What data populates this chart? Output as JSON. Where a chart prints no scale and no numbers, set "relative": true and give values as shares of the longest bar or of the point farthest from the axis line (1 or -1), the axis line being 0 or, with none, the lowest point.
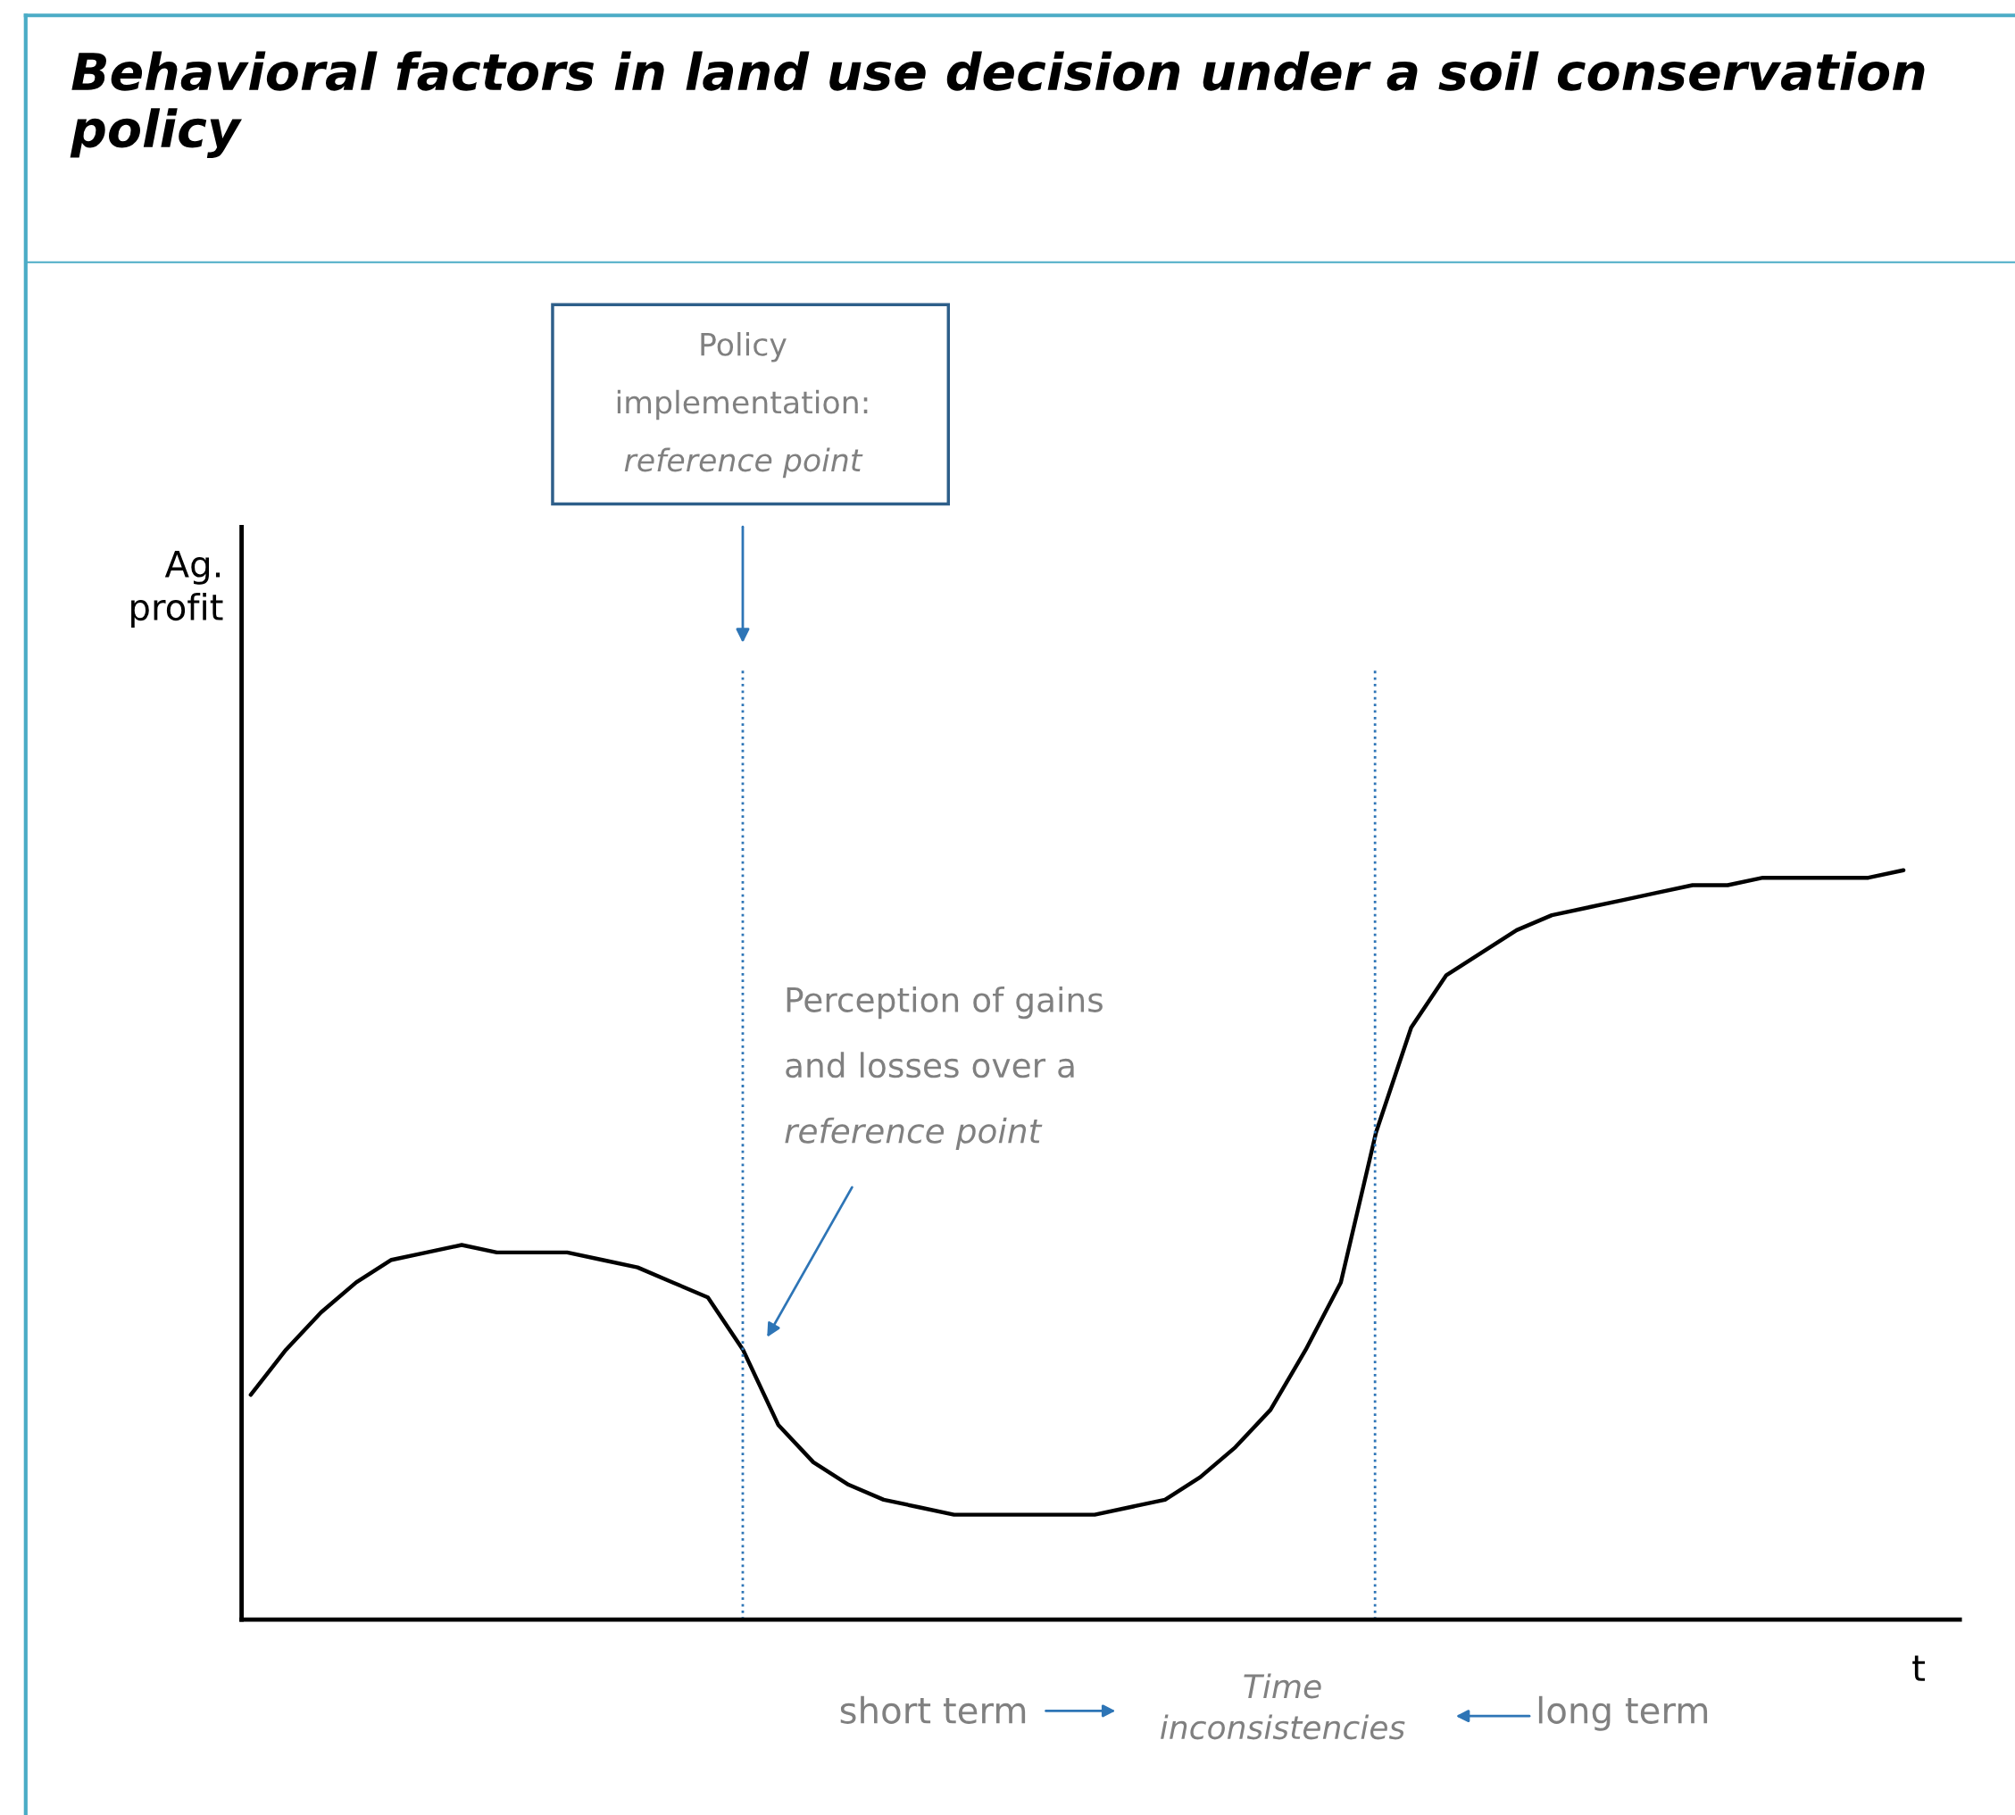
{
  "chart_data": {
    "type": "line",
    "relative": true,
    "title": "Behavioral factors in land use decision under a soil conservation policy",
    "xlabel": "t",
    "categories": [
      null,
      null,
      null,
      null,
      null,
      null,
      null,
      null,
      null,
      null,
      null,
      null,
      null,
      null,
      null,
      null,
      null,
      null,
      null,
      null,
      null,
      null,
      null,
      null,
      null,
      null,
      null,
      null,
      null,
      null,
      null,
      null,
      null,
      null,
      null,
      null,
      null,
      null,
      null,
      null,
      null,
      null,
      null,
      null,
      null,
      null,
      null,
      null
    ],
    "series": [
      {
        "color": "#000000",
        "values": [
          0.3,
          0.36,
          0.41,
          0.45,
          0.48,
          0.49,
          0.5,
          0.49,
          0.49,
          0.49,
          0.48,
          0.47,
          0.45,
          0.43,
          0.36,
          0.26,
          0.21,
          0.18,
          0.16,
          0.15,
          0.14,
          0.14,
          0.14,
          0.14,
          0.14,
          0.15,
          0.16,
          0.19,
          0.23,
          0.28,
          0.36,
          0.45,
          0.65,
          0.79,
          0.86,
          0.89,
          0.92,
          0.94,
          0.95,
          0.96,
          0.97,
          0.98,
          0.98,
          0.99,
          0.99,
          0.99,
          0.99,
          1
        ]
      }
    ],
    "annotations": [
      "Policy\nimplementation:\nreference point",
      "Perception of gains\nand losses over a\nreference point",
      "short term",
      "Time\ninconsistencies",
      "long term",
      "Ag.\nprofit"
    ]
  }
}
